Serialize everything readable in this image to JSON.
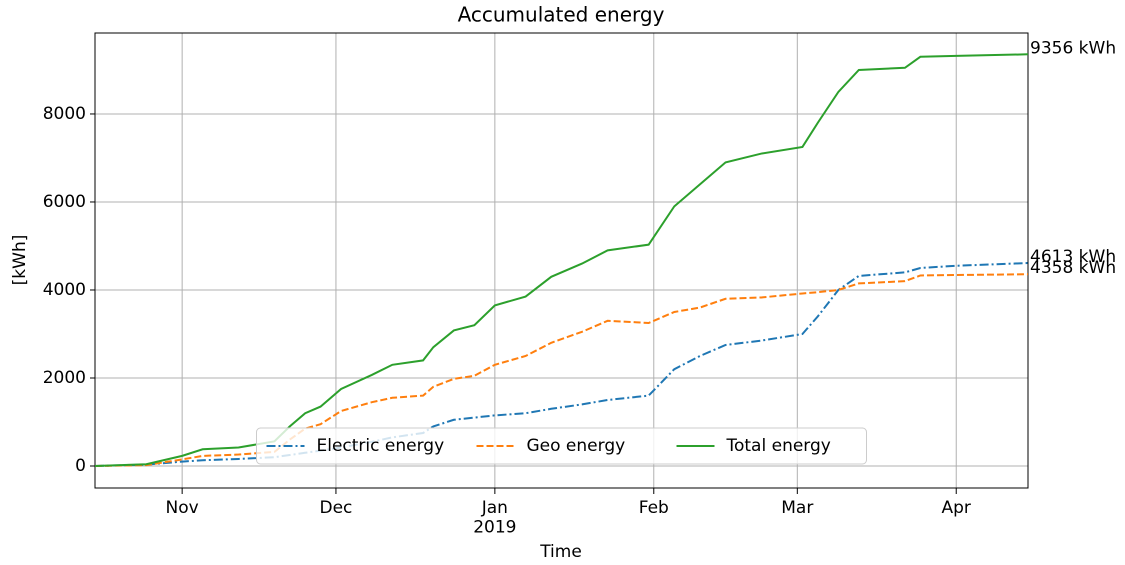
{
  "chart_data": {
    "type": "line",
    "title": "Accumulated energy",
    "xlabel": "Time",
    "ylabel": "[kWh]",
    "x": [
      "2018-10-15",
      "2018-10-25",
      "2018-11-01",
      "2018-11-05",
      "2018-11-12",
      "2018-11-19",
      "2018-11-22",
      "2018-11-25",
      "2018-11-28",
      "2018-12-02",
      "2018-12-08",
      "2018-12-12",
      "2018-12-18",
      "2018-12-20",
      "2018-12-24",
      "2018-12-28",
      "2019-01-01",
      "2019-01-07",
      "2019-01-12",
      "2019-01-18",
      "2019-01-23",
      "2019-01-31",
      "2019-02-05",
      "2019-02-10",
      "2019-02-15",
      "2019-02-22",
      "2019-03-02",
      "2019-03-05",
      "2019-03-09",
      "2019-03-13",
      "2019-03-22",
      "2019-03-25",
      "2019-04-01",
      "2019-04-15"
    ],
    "series": [
      {
        "name": "Electric energy",
        "color": "#1f77b4",
        "linestyle": "dashdot",
        "end_label": "4613 kWh",
        "values": [
          0,
          30,
          100,
          130,
          160,
          200,
          250,
          300,
          350,
          420,
          550,
          650,
          750,
          900,
          1050,
          1100,
          1150,
          1200,
          1300,
          1400,
          1500,
          1600,
          2200,
          2500,
          2750,
          2850,
          3000,
          3400,
          4000,
          4320,
          4400,
          4500,
          4550,
          4613
        ]
      },
      {
        "name": "Geo energy",
        "color": "#ff7f0e",
        "linestyle": "dashed",
        "end_label": "4358 kWh",
        "values": [
          0,
          20,
          150,
          230,
          260,
          320,
          600,
          850,
          950,
          1250,
          1450,
          1550,
          1600,
          1800,
          1980,
          2050,
          2300,
          2500,
          2800,
          3050,
          3300,
          3250,
          3500,
          3600,
          3800,
          3830,
          3920,
          3950,
          4000,
          4150,
          4200,
          4330,
          4340,
          4358
        ]
      },
      {
        "name": "Total energy",
        "color": "#2ca02c",
        "linestyle": "solid",
        "end_label": "9356 kWh",
        "values": [
          0,
          40,
          230,
          380,
          420,
          560,
          900,
          1200,
          1350,
          1750,
          2070,
          2300,
          2400,
          2700,
          3080,
          3200,
          3650,
          3850,
          4300,
          4600,
          4900,
          5030,
          5900,
          6400,
          6900,
          7100,
          7250,
          7800,
          8500,
          9000,
          9050,
          9300,
          9320,
          9356
        ]
      }
    ],
    "xlim": [
      "2018-10-15",
      "2019-04-15"
    ],
    "xticks": [
      {
        "value": "2018-11-01",
        "label": "Nov"
      },
      {
        "value": "2018-12-01",
        "label": "Dec"
      },
      {
        "value": "2019-01-01",
        "label": "Jan\n2019"
      },
      {
        "value": "2019-02-01",
        "label": "Feb"
      },
      {
        "value": "2019-03-01",
        "label": "Mar"
      },
      {
        "value": "2019-04-01",
        "label": "Apr"
      }
    ],
    "ylim": [
      -500,
      9840
    ],
    "yticks": [
      0,
      2000,
      4000,
      6000,
      8000
    ],
    "grid": true,
    "legend": "lower center"
  }
}
